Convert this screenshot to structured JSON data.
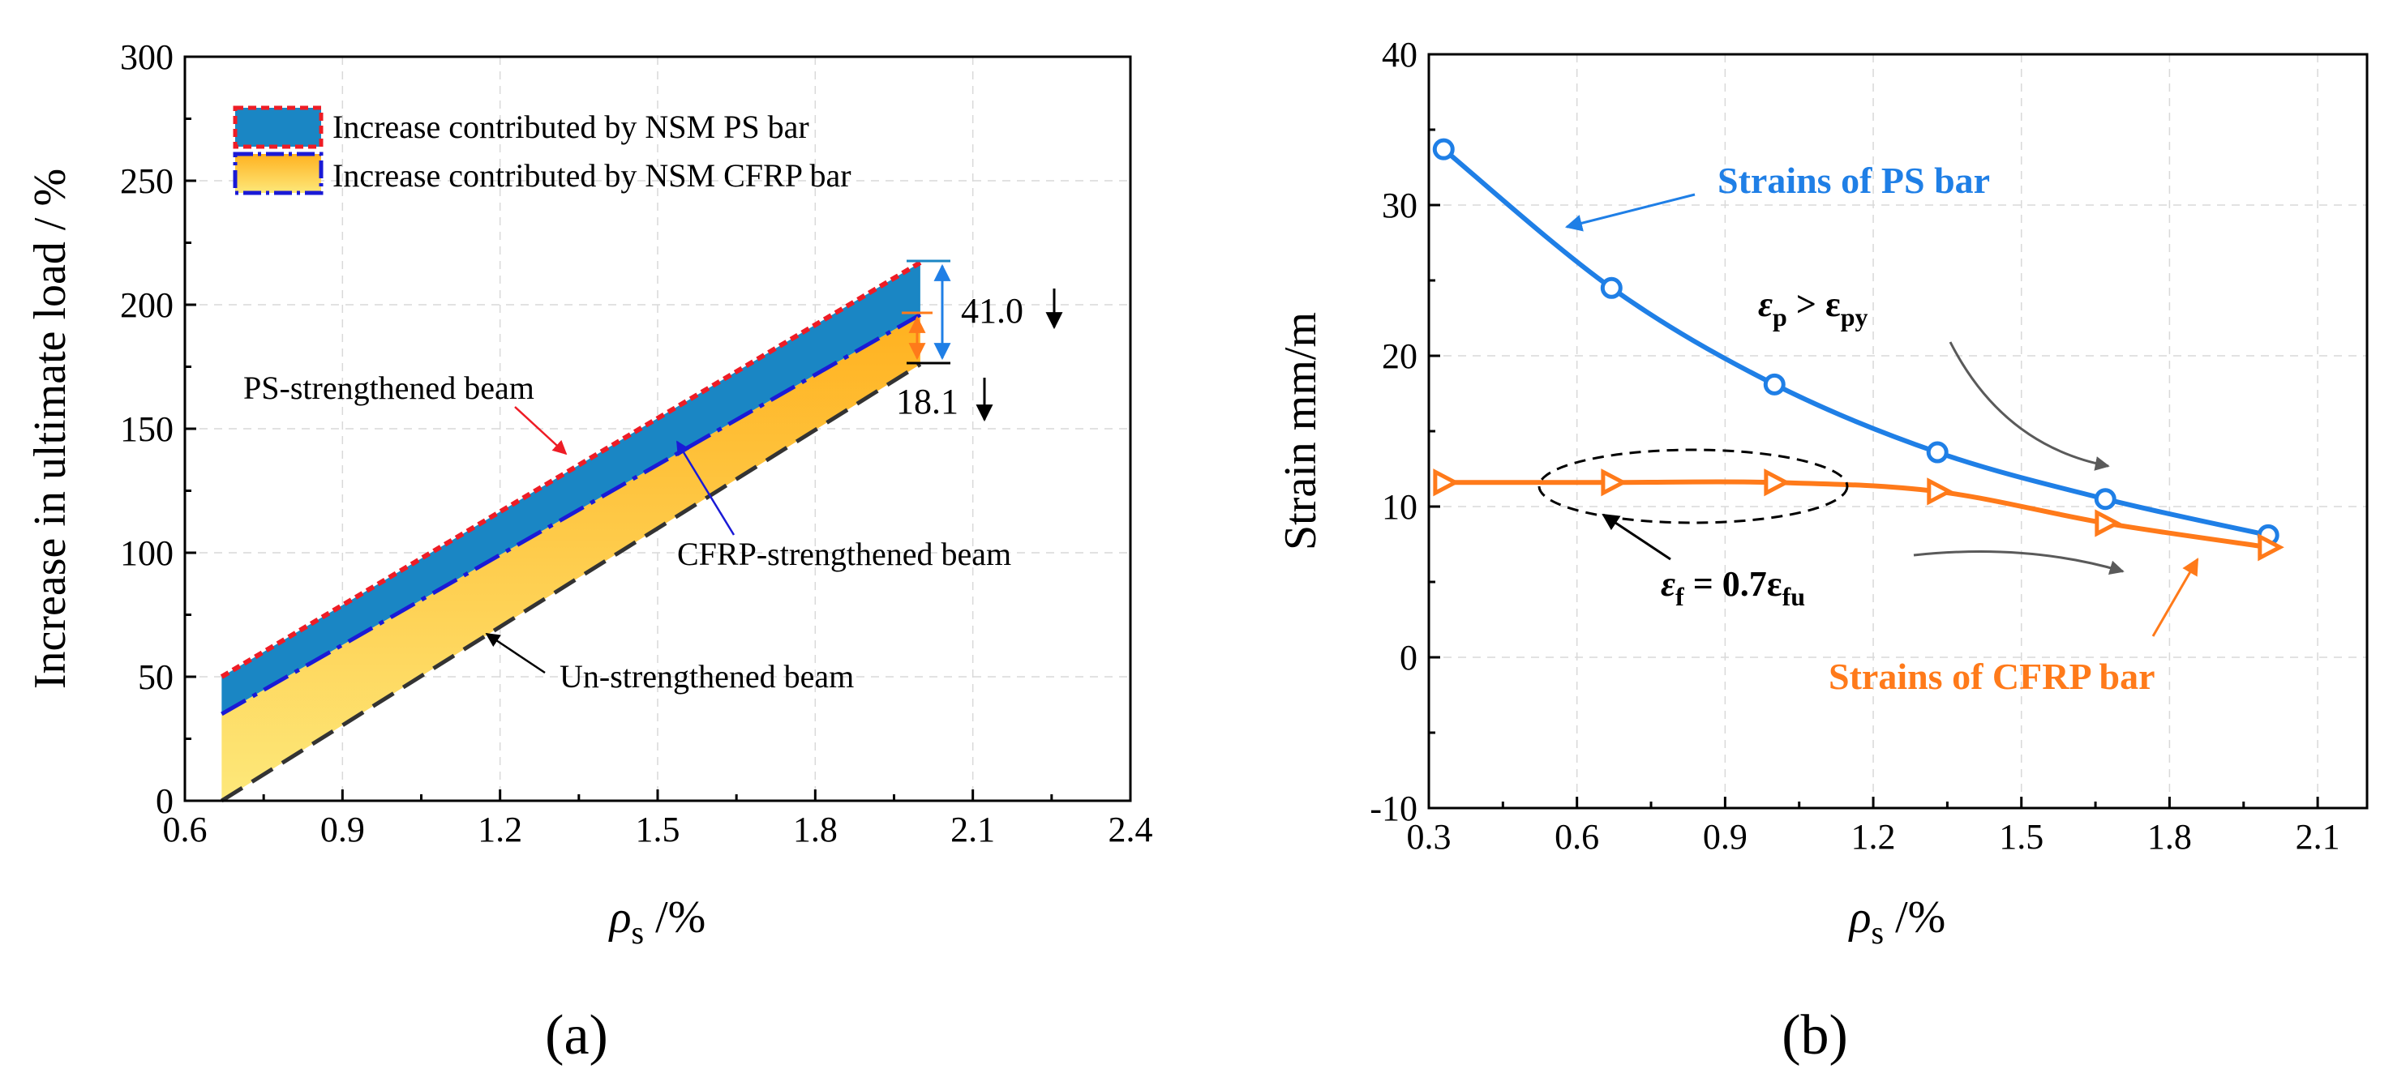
{
  "chart_data": [
    {
      "id": "a",
      "type": "area",
      "panel_label": "(a)",
      "xlabel": "ρ",
      "xlabel_sub": "s",
      "xlabel_unit": " /%",
      "ylabel": "Increase in ultimate load / %",
      "xlim": [
        0.6,
        2.4
      ],
      "ylim": [
        0,
        300
      ],
      "xticks": [
        "0.6",
        "0.9",
        "1.2",
        "1.5",
        "1.8",
        "2.1",
        "2.4"
      ],
      "yticks": [
        "0",
        "50",
        "100",
        "150",
        "200",
        "250",
        "300"
      ],
      "grid": true,
      "series": [
        {
          "name": "PS-strengthened beam",
          "x": [
            0.67,
            2.0
          ],
          "values": [
            50,
            217
          ]
        },
        {
          "name": "CFRP-strengthened beam",
          "x": [
            0.67,
            2.0
          ],
          "values": [
            35,
            196
          ]
        },
        {
          "name": "Un-strengthened beam",
          "x": [
            0.67,
            2.0
          ],
          "values": [
            0,
            176
          ]
        }
      ],
      "legend": [
        "Increase contributed by NSM PS bar",
        "Increase contributed by NSM CFRP bar"
      ],
      "annotations": {
        "ps_label": "PS-strengthened beam",
        "cfrp_label": "CFRP-strengthened beam",
        "un_label": "Un-strengthened beam",
        "ps_gap": "41.0",
        "cfrp_gap": "18.1"
      },
      "colors": {
        "ps_fill": "#1a86c4",
        "cfrp_fill_top": "#ffb11f",
        "cfrp_fill_bottom": "#fde87a",
        "ps_line": "#ee1c25",
        "cfrp_line": "#1a1ad6",
        "un_line": "#333333"
      }
    },
    {
      "id": "b",
      "type": "line",
      "panel_label": "(b)",
      "xlabel": "ρ",
      "xlabel_sub": "s",
      "xlabel_unit": " /%",
      "ylabel": "Strain  mm/m",
      "xlim": [
        0.3,
        2.2
      ],
      "ylim": [
        -10,
        40
      ],
      "xticks": [
        "0.3",
        "0.6",
        "0.9",
        "1.2",
        "1.5",
        "1.8",
        "2.1"
      ],
      "yticks": [
        "-10",
        "0",
        "10",
        "20",
        "30",
        "40"
      ],
      "grid": true,
      "series": [
        {
          "name": "Strains of PS bar",
          "x": [
            0.33,
            0.67,
            1.0,
            1.33,
            1.67,
            2.0
          ],
          "values": [
            33.7,
            24.5,
            18.1,
            13.6,
            10.5,
            8.1
          ]
        },
        {
          "name": "Strains of CFRP bar",
          "x": [
            0.33,
            0.67,
            1.0,
            1.33,
            1.67,
            2.0
          ],
          "values": [
            11.6,
            11.6,
            11.6,
            11.0,
            8.9,
            7.3
          ]
        }
      ],
      "annotations": {
        "ps_label": "Strains of PS bar",
        "cfrp_label": "Strains of CFRP bar",
        "eps_p_main": "ε",
        "eps_p_sub": "p",
        "eps_p_rel": " > ε",
        "eps_p_sub2": "py",
        "eps_f_main": "ε",
        "eps_f_sub": "f",
        "eps_f_rel": " = 0.7ε",
        "eps_f_sub2": "fu"
      },
      "colors": {
        "ps": "#1f7fe6",
        "cfrp": "#ff7a1a",
        "gray_arrow": "#5a5a5a"
      }
    }
  ]
}
